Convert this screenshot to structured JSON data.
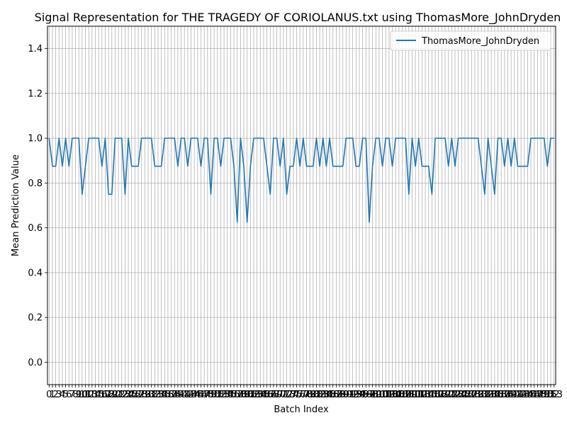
{
  "chart_data": {
    "type": "line",
    "title": "Signal Representation for THE TRAGEDY OF CORIOLANUS.txt using ThomasMore_JohnDryden",
    "xlabel": "Batch Index",
    "ylabel": "Mean Prediction Value",
    "xlim": [
      -0.5,
      153.5
    ],
    "ylim": [
      -0.1,
      1.5
    ],
    "yticks": [
      0.0,
      0.2,
      0.4,
      0.6,
      0.8,
      1.0,
      1.2,
      1.4
    ],
    "ytick_labels": [
      "0.0",
      "0.2",
      "0.4",
      "0.6",
      "0.8",
      "1.0",
      "1.2",
      "1.4"
    ],
    "xticks_every": 1,
    "grid": true,
    "legend_position": "top-right",
    "colors": {
      "series": "#1f77b4",
      "grid": "#b0b0b0"
    },
    "series": [
      {
        "name": "ThomasMore_JohnDryden",
        "x": [
          0,
          1,
          2,
          3,
          4,
          5,
          6,
          7,
          8,
          9,
          10,
          11,
          12,
          13,
          14,
          15,
          16,
          17,
          18,
          19,
          20,
          21,
          22,
          23,
          24,
          25,
          26,
          27,
          28,
          29,
          30,
          31,
          32,
          33,
          34,
          35,
          36,
          37,
          38,
          39,
          40,
          41,
          42,
          43,
          44,
          45,
          46,
          47,
          48,
          49,
          50,
          51,
          52,
          53,
          54,
          55,
          56,
          57,
          58,
          59,
          60,
          61,
          62,
          63,
          64,
          65,
          66,
          67,
          68,
          69,
          70,
          71,
          72,
          73,
          74,
          75,
          76,
          77,
          78,
          79,
          80,
          81,
          82,
          83,
          84,
          85,
          86,
          87,
          88,
          89,
          90,
          91,
          92,
          93,
          94,
          95,
          96,
          97,
          98,
          99,
          100,
          101,
          102,
          103,
          104,
          105,
          106,
          107,
          108,
          109,
          110,
          111,
          112,
          113,
          114,
          115,
          116,
          117,
          118,
          119,
          120,
          121,
          122,
          123,
          124,
          125,
          126,
          127,
          128,
          129,
          130,
          131,
          132,
          133,
          134,
          135,
          136,
          137,
          138,
          139,
          140,
          141,
          142,
          143,
          144,
          145,
          146,
          147,
          148,
          149,
          150,
          151,
          152,
          153
        ],
        "values": [
          1.0,
          0.875,
          0.875,
          1.0,
          0.875,
          1.0,
          0.875,
          1.0,
          1.0,
          1.0,
          0.75,
          0.875,
          1.0,
          1.0,
          1.0,
          1.0,
          0.875,
          1.0,
          0.75,
          0.75,
          1.0,
          1.0,
          1.0,
          0.75,
          1.0,
          0.875,
          0.875,
          0.875,
          1.0,
          1.0,
          1.0,
          1.0,
          0.875,
          0.875,
          0.875,
          1.0,
          1.0,
          1.0,
          1.0,
          0.875,
          1.0,
          1.0,
          0.875,
          1.0,
          1.0,
          1.0,
          0.875,
          1.0,
          1.0,
          0.75,
          1.0,
          1.0,
          0.875,
          1.0,
          1.0,
          1.0,
          0.875,
          0.625,
          1.0,
          0.875,
          0.625,
          0.875,
          1.0,
          1.0,
          1.0,
          1.0,
          0.875,
          0.75,
          1.0,
          1.0,
          0.875,
          1.0,
          0.75,
          0.875,
          0.875,
          1.0,
          0.875,
          1.0,
          0.875,
          0.875,
          0.875,
          1.0,
          0.875,
          1.0,
          0.875,
          1.0,
          0.875,
          0.875,
          0.875,
          0.875,
          1.0,
          1.0,
          1.0,
          0.875,
          0.875,
          1.0,
          1.0,
          0.625,
          0.875,
          1.0,
          1.0,
          0.875,
          1.0,
          1.0,
          0.875,
          1.0,
          1.0,
          1.0,
          1.0,
          0.75,
          1.0,
          0.875,
          1.0,
          0.875,
          0.875,
          0.875,
          0.75,
          1.0,
          1.0,
          1.0,
          1.0,
          0.875,
          1.0,
          0.875,
          1.0,
          1.0,
          1.0,
          1.0,
          1.0,
          1.0,
          1.0,
          0.875,
          0.75,
          1.0,
          0.875,
          0.75,
          1.0,
          1.0,
          0.875,
          1.0,
          0.875,
          1.0,
          0.875,
          0.875,
          0.875,
          0.875,
          1.0,
          1.0,
          1.0,
          1.0,
          1.0,
          0.875,
          1.0,
          1.0
        ]
      }
    ]
  }
}
